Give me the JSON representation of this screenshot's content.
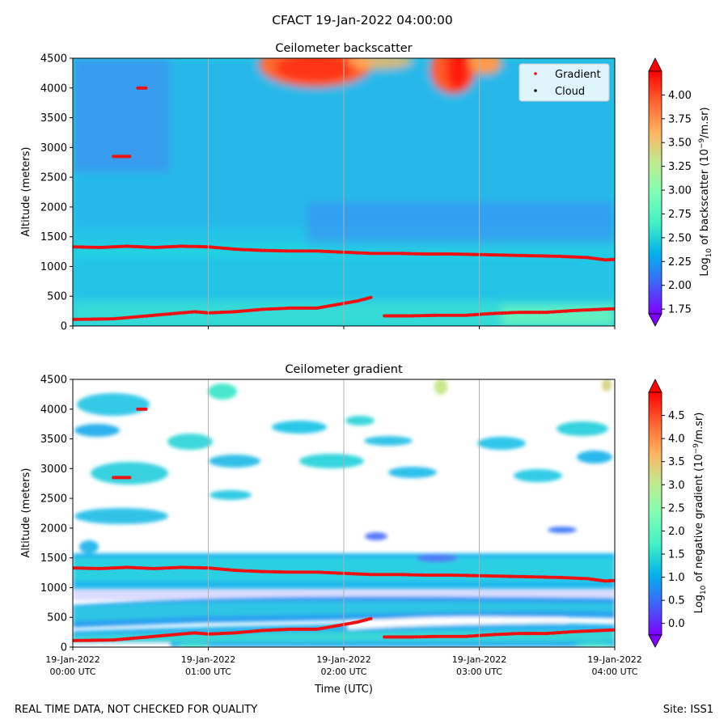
{
  "figure": {
    "title": "CFACT 19-Jan-2022 04:00:00",
    "footer_left": "REAL TIME DATA, NOT CHECKED FOR QUALITY",
    "footer_right": "Site: ISS1"
  },
  "colors": {
    "gradient_marker": "#ee1111",
    "cloud_marker": "#000000",
    "colormap": [
      "#8000ff",
      "#4062fa",
      "#01b3eb",
      "#41f1c5",
      "#80feb3",
      "#c0eb8e",
      "#ffb360",
      "#ff6230",
      "#ff0000"
    ]
  },
  "chart_data": [
    {
      "type": "heatmap",
      "title": "Ceilometer backscatter",
      "ylabel": "Altitude (meters)",
      "ylim": [
        0,
        4500
      ],
      "yticks": [
        "0",
        "500",
        "1000",
        "1500",
        "2000",
        "2500",
        "3000",
        "3500",
        "4000",
        "4500"
      ],
      "xlim_hours": [
        0,
        4
      ],
      "x_gridlines_hours": [
        1,
        2,
        3
      ],
      "colorbar": {
        "label": "Log10 of backscatter (10^-9/m.sr)",
        "label_parts": [
          "Log",
          "10",
          " of backscatter (10",
          "−9",
          "/m.sr)"
        ],
        "range": [
          1.7,
          4.25
        ],
        "ticks": [
          "1.75",
          "2.00",
          "2.25",
          "2.50",
          "2.75",
          "3.00",
          "3.25",
          "3.50",
          "3.75",
          "4.00"
        ],
        "extend": "both"
      },
      "legend": {
        "location": "upper right",
        "entries": [
          {
            "label": "Gradient",
            "color": "red"
          },
          {
            "label": "Cloud",
            "color": "black"
          }
        ]
      },
      "series": [
        {
          "name": "Gradient (upper layer)",
          "points": [
            [
              0.0,
              1330
            ],
            [
              0.2,
              1320
            ],
            [
              0.4,
              1340
            ],
            [
              0.6,
              1320
            ],
            [
              0.8,
              1340
            ],
            [
              1.0,
              1330
            ],
            [
              1.2,
              1290
            ],
            [
              1.4,
              1270
            ],
            [
              1.6,
              1260
            ],
            [
              1.8,
              1260
            ],
            [
              2.0,
              1240
            ],
            [
              2.2,
              1220
            ],
            [
              2.4,
              1220
            ],
            [
              2.6,
              1210
            ],
            [
              2.8,
              1210
            ],
            [
              3.0,
              1200
            ],
            [
              3.2,
              1190
            ],
            [
              3.4,
              1180
            ],
            [
              3.6,
              1170
            ],
            [
              3.8,
              1150
            ],
            [
              3.93,
              1110
            ],
            [
              4.0,
              1120
            ]
          ]
        },
        {
          "name": "Gradient (lower layer)",
          "points": [
            [
              0.0,
              110
            ],
            [
              0.3,
              120
            ],
            [
              0.5,
              160
            ],
            [
              0.7,
              200
            ],
            [
              0.9,
              240
            ],
            [
              1.0,
              220
            ],
            [
              1.2,
              240
            ],
            [
              1.4,
              280
            ],
            [
              1.6,
              300
            ],
            [
              1.8,
              300
            ],
            [
              2.0,
              380
            ],
            [
              2.1,
              420
            ],
            [
              2.2,
              480
            ]
          ]
        },
        {
          "name": "Gradient (lower layer, later)",
          "points": [
            [
              2.3,
              170
            ],
            [
              2.5,
              170
            ],
            [
              2.7,
              180
            ],
            [
              2.9,
              180
            ],
            [
              3.1,
              210
            ],
            [
              3.3,
              230
            ],
            [
              3.5,
              230
            ],
            [
              3.7,
              260
            ],
            [
              3.9,
              280
            ],
            [
              4.0,
              290
            ]
          ]
        },
        {
          "name": "Gradient (elevated 2850 m)",
          "points": [
            [
              0.3,
              2850
            ],
            [
              0.42,
              2850
            ]
          ]
        },
        {
          "name": "Gradient (elevated 4000 m)",
          "points": [
            [
              0.48,
              4000
            ],
            [
              0.54,
              4000
            ]
          ]
        }
      ]
    },
    {
      "type": "heatmap",
      "title": "Ceilometer gradient",
      "ylabel": "Altitude (meters)",
      "xlabel": "Time (UTC)",
      "ylim": [
        0,
        4500
      ],
      "yticks": [
        "0",
        "500",
        "1000",
        "1500",
        "2000",
        "2500",
        "3000",
        "3500",
        "4000",
        "4500"
      ],
      "xlim_hours": [
        0,
        4
      ],
      "x_gridlines_hours": [
        1,
        2,
        3
      ],
      "xticks": [
        {
          "date": "19-Jan-2022",
          "time": "00:00 UTC"
        },
        {
          "date": "19-Jan-2022",
          "time": "01:00 UTC"
        },
        {
          "date": "19-Jan-2022",
          "time": "02:00 UTC"
        },
        {
          "date": "19-Jan-2022",
          "time": "03:00 UTC"
        },
        {
          "date": "19-Jan-2022",
          "time": "04:00 UTC"
        }
      ],
      "colorbar": {
        "label": "Log10 of negative gradient (10^-9/m.sr)",
        "label_parts": [
          "Log",
          "10",
          " of negative gradient (10",
          "−9",
          "/m.sr)"
        ],
        "range": [
          -0.25,
          5.0
        ],
        "ticks": [
          "0.0",
          "0.5",
          "1.0",
          "1.5",
          "2.0",
          "2.5",
          "3.0",
          "3.5",
          "4.0",
          "4.5"
        ],
        "extend": "both"
      },
      "series": [
        {
          "name": "Gradient (upper layer)",
          "points": [
            [
              0.0,
              1330
            ],
            [
              0.2,
              1320
            ],
            [
              0.4,
              1340
            ],
            [
              0.6,
              1320
            ],
            [
              0.8,
              1340
            ],
            [
              1.0,
              1330
            ],
            [
              1.2,
              1290
            ],
            [
              1.4,
              1270
            ],
            [
              1.6,
              1260
            ],
            [
              1.8,
              1260
            ],
            [
              2.0,
              1240
            ],
            [
              2.2,
              1220
            ],
            [
              2.4,
              1220
            ],
            [
              2.6,
              1210
            ],
            [
              2.8,
              1210
            ],
            [
              3.0,
              1200
            ],
            [
              3.2,
              1190
            ],
            [
              3.4,
              1180
            ],
            [
              3.6,
              1170
            ],
            [
              3.8,
              1150
            ],
            [
              3.93,
              1110
            ],
            [
              4.0,
              1120
            ]
          ]
        },
        {
          "name": "Gradient (lower layer)",
          "points": [
            [
              0.0,
              110
            ],
            [
              0.3,
              120
            ],
            [
              0.5,
              160
            ],
            [
              0.7,
              200
            ],
            [
              0.9,
              240
            ],
            [
              1.0,
              220
            ],
            [
              1.2,
              240
            ],
            [
              1.4,
              280
            ],
            [
              1.6,
              300
            ],
            [
              1.8,
              300
            ],
            [
              2.0,
              380
            ],
            [
              2.1,
              420
            ],
            [
              2.2,
              480
            ]
          ]
        },
        {
          "name": "Gradient (lower layer, later)",
          "points": [
            [
              2.3,
              170
            ],
            [
              2.5,
              170
            ],
            [
              2.7,
              180
            ],
            [
              2.9,
              180
            ],
            [
              3.1,
              210
            ],
            [
              3.3,
              230
            ],
            [
              3.5,
              230
            ],
            [
              3.7,
              260
            ],
            [
              3.9,
              280
            ],
            [
              4.0,
              290
            ]
          ]
        },
        {
          "name": "Gradient (elevated 2850 m)",
          "points": [
            [
              0.3,
              2850
            ],
            [
              0.42,
              2850
            ]
          ]
        },
        {
          "name": "Gradient (elevated 4000 m)",
          "points": [
            [
              0.48,
              4000
            ],
            [
              0.54,
              4000
            ]
          ]
        }
      ]
    }
  ]
}
